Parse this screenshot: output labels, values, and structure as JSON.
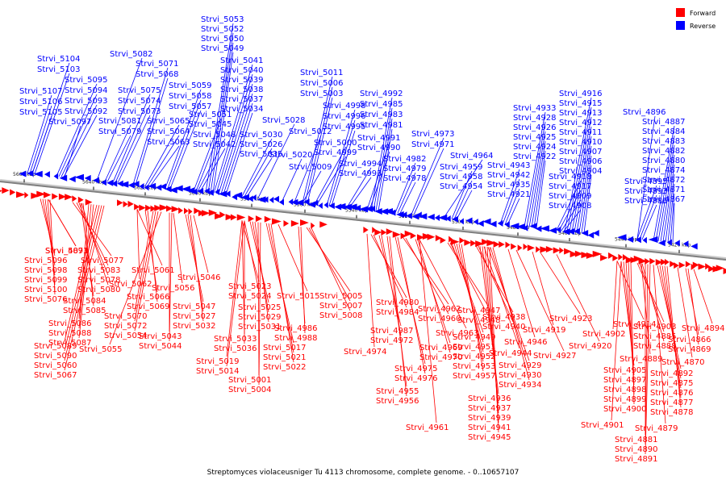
{
  "caption": "Streptomyces violaceusniger Tu 4113 chromosome, complete genome. - 0..10657107",
  "legend": [
    {
      "label": "Forward",
      "color": "#ff0000"
    },
    {
      "label": "Reverse",
      "color": "#0000ff"
    }
  ],
  "colors": {
    "forward": "#ff0000",
    "reverse": "#0000ff",
    "backbone": "#808080"
  },
  "scale_ticks": [
    "5660 kbp",
    "5640 kbp",
    "5620 kbp",
    "5600 kbp",
    "5580 kbp",
    "5560 kbp",
    "5540 kbp",
    "5520 kbp",
    "5500 kbp",
    "5480 kbp",
    "5460 kbp",
    "5440 kbp",
    "5420 kbp"
  ],
  "reverse_genes": [
    "Strvi_5104",
    "Strvi_5103",
    "Strvi_5107",
    "Strvi_5106",
    "Strvi_5105",
    "Strvi_5095",
    "Strvi_5094",
    "Strvi_5093",
    "Strvi_5092",
    "Strvi_5097",
    "Strvi_5082",
    "Strvi_5075",
    "Strvi_5074",
    "Strvi_5073",
    "Strvi_5081",
    "Strvi_5079",
    "Strvi_5071",
    "Strvi_5068",
    "Strvi_5065",
    "Strvi_5064",
    "Strvi_5063",
    "Strvi_5059",
    "Strvi_5058",
    "Strvi_5057",
    "Strvi_5053",
    "Strvi_5052",
    "Strvi_5050",
    "Strvi_5049",
    "Strvi_5041",
    "Strvi_5040",
    "Strvi_5039",
    "Strvi_5038",
    "Strvi_5037",
    "Strvi_5034",
    "Strvi_5051",
    "Strvi_5045",
    "Strvi_5048",
    "Strvi_5042",
    "Strvi_5030",
    "Strvi_5026",
    "Strvi_5035",
    "Strvi_5028",
    "Strvi_5011",
    "Strvi_5006",
    "Strvi_5003",
    "Strvi_5012",
    "Strvi_5000",
    "Strvi_4999",
    "Strvi_5020",
    "Strvi_5009",
    "Strvi_4998",
    "Strvi_4996",
    "Strvi_4995",
    "Strvi_4994",
    "Strvi_4993",
    "Strvi_4992",
    "Strvi_4985",
    "Strvi_4983",
    "Strvi_4981",
    "Strvi_4991",
    "Strvi_4990",
    "Strvi_4973",
    "Strvi_4971",
    "Strvi_4964",
    "Strvi_4982",
    "Strvi_4979",
    "Strvi_4978",
    "Strvi_4959",
    "Strvi_4958",
    "Strvi_4954",
    "Strvi_4933",
    "Strvi_4928",
    "Strvi_4926",
    "Strvi_4925",
    "Strvi_4924",
    "Strvi_4922",
    "Strvi_4943",
    "Strvi_4942",
    "Strvi_4935",
    "Strvi_4921",
    "Strvi_4916",
    "Strvi_4915",
    "Strvi_4913",
    "Strvi_4912",
    "Strvi_4911",
    "Strvi_4910",
    "Strvi_4907",
    "Strvi_4906",
    "Strvi_4904",
    "Strvi_4918",
    "Strvi_4917",
    "Strvi_4909",
    "Strvi_4908",
    "Strvi_4896",
    "Strvi_4887",
    "Strvi_4884",
    "Strvi_4883",
    "Strvi_4882",
    "Strvi_4880",
    "Strvi_4874",
    "Strvi_4872",
    "Strvi_4871",
    "Strvi_4867",
    "Strvi_4895",
    "Strvi_4893",
    "Strvi_4886"
  ],
  "forward_genes": [
    "Strvi_5091",
    "Strvi_5096",
    "Strvi_5098",
    "Strvi_5099",
    "Strvi_5100",
    "Strvi_5076",
    "Strvi_5077",
    "Strvi_5083",
    "Strvi_5078",
    "Strvi_5080",
    "Strvi_5084",
    "Strvi_5085",
    "Strvi_5086",
    "Strvi_5088",
    "Strvi_5087",
    "Strvi_5089",
    "Strvi_5090",
    "Strvi_5060",
    "Strvi_5067",
    "Strvi_5061",
    "Strvi_5062",
    "Strvi_5066",
    "Strvi_5069",
    "Strvi_5070",
    "Strvi_5072",
    "Strvi_5054",
    "Strvi_5055",
    "Strvi_5056",
    "Strvi_5043",
    "Strvi_5044",
    "Strvi_5046",
    "Strvi_5047",
    "Strvi_5027",
    "Strvi_5032",
    "Strvi_5023",
    "Strvi_5024",
    "Strvi_5025",
    "Strvi_5029",
    "Strvi_5031",
    "Strvi_5033",
    "Strvi_5036",
    "Strvi_5019",
    "Strvi_5014",
    "Strvi_5015",
    "Strvi_5017",
    "Strvi_5021",
    "Strvi_5022",
    "Strvi_5001",
    "Strvi_5004",
    "Strvi_5005",
    "Strvi_5007",
    "Strvi_5008",
    "Strvi_4986",
    "Strvi_4988",
    "Strvi_4980",
    "Strvi_4984",
    "Strvi_4987",
    "Strvi_4972",
    "Strvi_4974",
    "Strvi_4962",
    "Strvi_4960",
    "Strvi_4963",
    "Strvi_4969",
    "Strvi_4970",
    "Strvi_4975",
    "Strvi_4976",
    "Strvi_4955",
    "Strvi_4956",
    "Strvi_4947",
    "Strvi_4948",
    "Strvi_4949",
    "Strvi_4951",
    "Strvi_4952",
    "Strvi_4953",
    "Strvi_4957",
    "Strvi_4961",
    "Strvi_4938",
    "Strvi_4940",
    "Strvi_4944",
    "Strvi_4929",
    "Strvi_4930",
    "Strvi_4934",
    "Strvi_4936",
    "Strvi_4937",
    "Strvi_4939",
    "Strvi_4941",
    "Strvi_4945",
    "Strvi_4946",
    "Strvi_4927",
    "Strvi_4923",
    "Strvi_4919",
    "Strvi_4920",
    "Strvi_4914",
    "Strvi_4902",
    "Strvi_4905",
    "Strvi_4897",
    "Strvi_4898",
    "Strvi_4899",
    "Strvi_4900",
    "Strvi_4901",
    "Strvi_4903",
    "Strvi_4885",
    "Strvi_4888",
    "Strvi_4889",
    "Strvi_4892",
    "Strvi_4875",
    "Strvi_4876",
    "Strvi_4877",
    "Strvi_4878",
    "Strvi_4879",
    "Strvi_4881",
    "Strvi_4890",
    "Strvi_4891",
    "Strvi_4894",
    "Strvi_4866",
    "Strvi_4869",
    "Strvi_4870",
    "Strvi_4873"
  ]
}
